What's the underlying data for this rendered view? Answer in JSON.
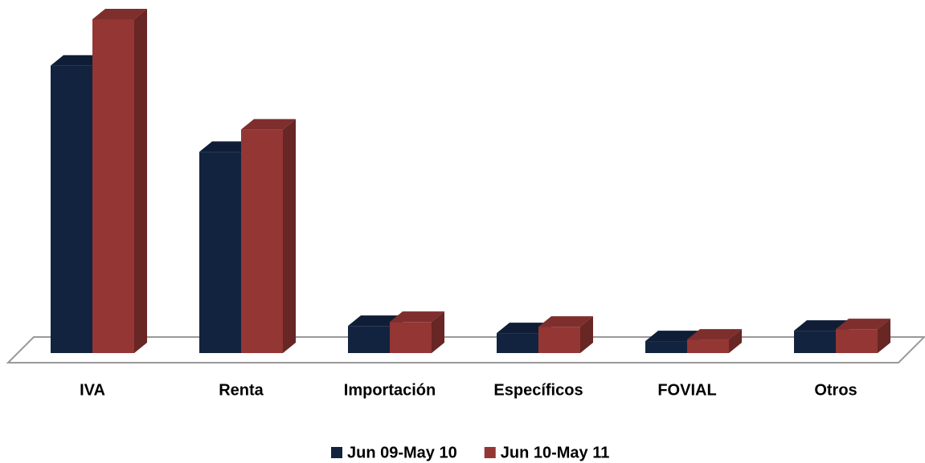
{
  "chart_data": {
    "type": "bar3d",
    "categories": [
      "IVA",
      "Renta",
      "Importación",
      "Específicos",
      "FOVIAL",
      "Otros"
    ],
    "series": [
      {
        "name": "Jun 09-May 10",
        "color": "#12233f",
        "values": [
          360,
          252,
          34,
          25,
          15,
          28
        ]
      },
      {
        "name": "Jun 10-May 11",
        "color": "#943634",
        "values": [
          418,
          280,
          39,
          33,
          17,
          30
        ]
      }
    ],
    "ylim": [
      0,
      420
    ],
    "legend": "bottom"
  }
}
